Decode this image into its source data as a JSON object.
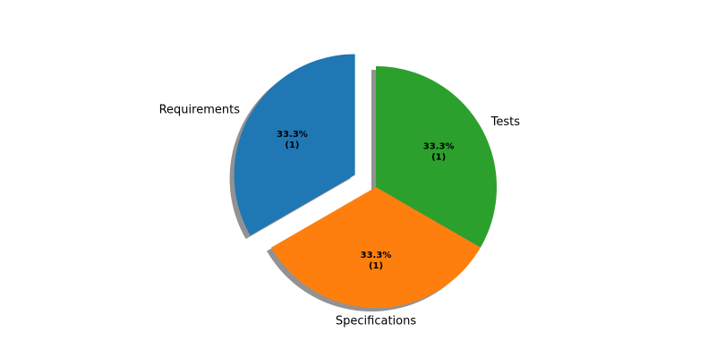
{
  "chart_data": {
    "type": "pie",
    "categories": [
      "Requirements",
      "Specifications",
      "Tests"
    ],
    "values": [
      1,
      1,
      1
    ],
    "percent_labels": [
      "33.3%",
      "33.3%",
      "33.3%"
    ],
    "count_labels": [
      "(1)",
      "(1)",
      "(1)"
    ],
    "colors": [
      "#1f77b4",
      "#ff7f0e",
      "#2ca02c"
    ],
    "exploded": [
      true,
      false,
      false
    ],
    "shadow": true,
    "title": "",
    "legend": "none"
  }
}
